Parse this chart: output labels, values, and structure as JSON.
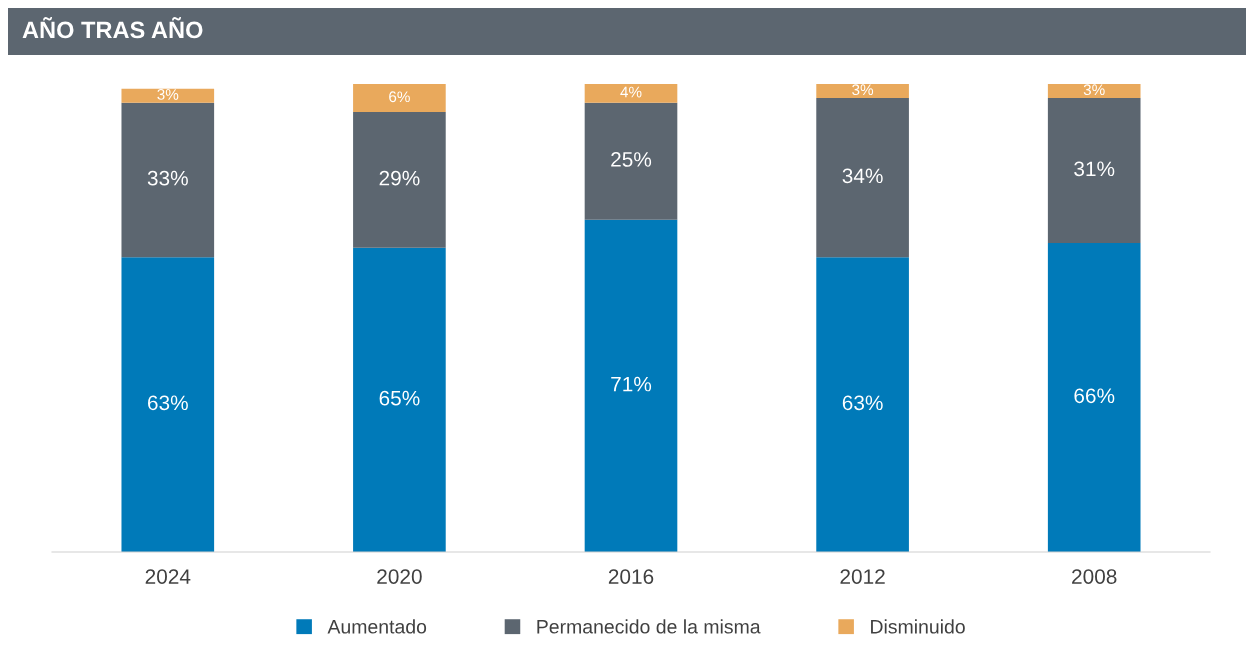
{
  "chart_data": {
    "type": "bar",
    "title": "AÑO TRAS AÑO",
    "stacked": true,
    "legend": "bottom",
    "grid": false,
    "categories": [
      "2024",
      "2020",
      "2016",
      "2012",
      "2008"
    ],
    "series": [
      {
        "name": "Aumentado",
        "color": "#007ab9",
        "values": [
          63,
          65,
          71,
          63,
          66
        ],
        "value_labels": [
          "63%",
          "65%",
          "71%",
          "63%",
          "66%"
        ]
      },
      {
        "name": "Permanecido de la misma",
        "color": "#5c6670",
        "values": [
          33,
          29,
          25,
          34,
          31
        ],
        "value_labels": [
          "33%",
          "29%",
          "25%",
          "34%",
          "31%"
        ]
      },
      {
        "name": "Disminuido",
        "color": "#e9a95c",
        "values": [
          3,
          6,
          4,
          3,
          3
        ],
        "value_labels": [
          "3%",
          "6%",
          "4%",
          "3%",
          "3%"
        ]
      }
    ]
  }
}
